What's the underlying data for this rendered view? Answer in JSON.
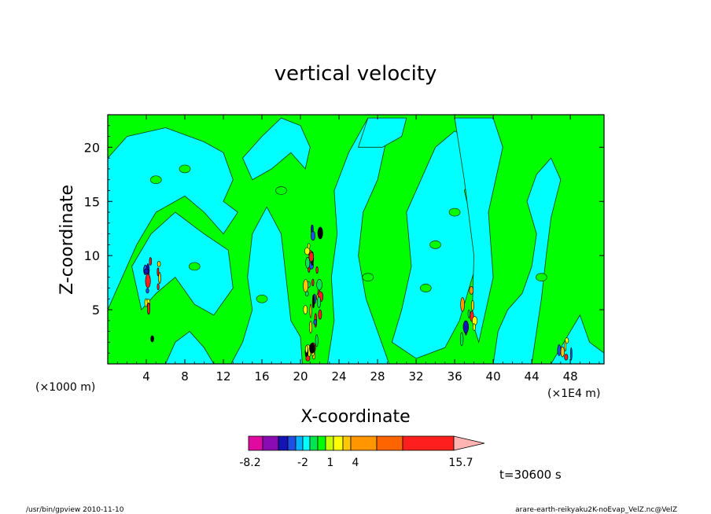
{
  "chart_data": {
    "type": "heatmap",
    "title": "vertical velocity",
    "xlabel": "X-coordinate",
    "ylabel": "Z-coordinate",
    "x_unit_left": "(×1000 m)",
    "x_unit_right": "(×1E4 m)",
    "xlim": [
      0,
      51.5
    ],
    "ylim": [
      0,
      23
    ],
    "xticks": [
      4,
      8,
      12,
      16,
      20,
      24,
      28,
      32,
      36,
      40,
      44,
      48
    ],
    "xtick_labels": [
      "4",
      "8",
      "12",
      "16",
      "20",
      "24",
      "28",
      "32",
      "36",
      "40",
      "44",
      "48"
    ],
    "yticks": [
      5,
      10,
      15,
      20
    ],
    "ytick_labels": [
      "5",
      "10",
      "15",
      "20"
    ],
    "colorbar": {
      "colors": [
        "#e00aa0",
        "#8a0ab4",
        "#1414b4",
        "#1e50e6",
        "#00b4ff",
        "#00ffff",
        "#00e650",
        "#00ff00",
        "#c8ff00",
        "#ffff00",
        "#ffc800",
        "#ff9600",
        "#ff6400",
        "#ff1e1e",
        "#ff7878",
        "#ffb4b4"
      ],
      "labels": [
        "-8.2",
        "-2",
        "1",
        "4",
        "15.7"
      ]
    },
    "time_label": "t=30600 s",
    "background_color": "#00ff00",
    "dominant_colors": [
      "#00ff00",
      "#00ffff"
    ]
  },
  "footer": {
    "left": "/usr/bin/gpview   2010-11-10",
    "right": "arare-earth-reikyaku2K-noEvap_VelZ.nc@VelZ"
  }
}
